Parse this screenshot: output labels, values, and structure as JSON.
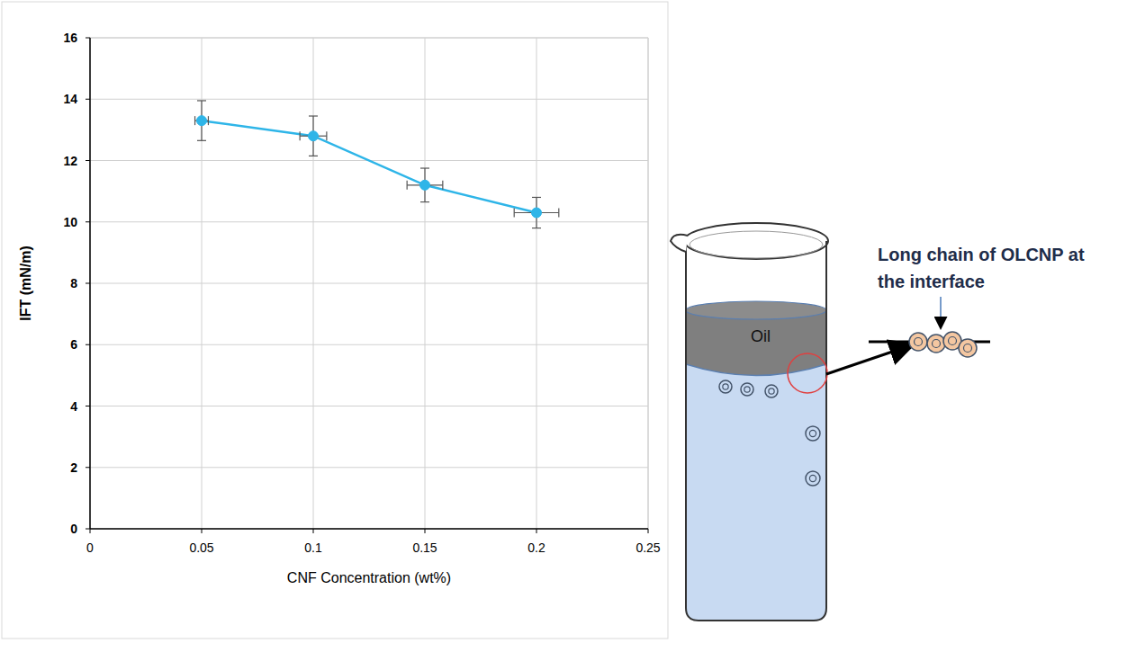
{
  "chart_data": {
    "type": "line",
    "x_label": "CNF Concentration (wt%)",
    "y_label": "IFT (mN/m)",
    "x": [
      0.05,
      0.1,
      0.15,
      0.2
    ],
    "series": [
      {
        "color": "#2eb5e8",
        "marker": "circle",
        "line_style": "solid",
        "values": [
          13.3,
          12.8,
          11.2,
          10.3
        ],
        "errors": [
          0.65,
          0.65,
          0.55,
          0.5
        ],
        "x_errors": [
          0.003,
          0.006,
          0.008,
          0.01
        ]
      }
    ],
    "xlim": [
      0,
      0.25
    ],
    "xticks": [
      0,
      0.05,
      0.1,
      0.15,
      0.2,
      0.25
    ],
    "ylim": [
      0,
      16
    ],
    "yticks": [
      0,
      2,
      4,
      6,
      8,
      10,
      12,
      14,
      16
    ],
    "grid": true,
    "annotations": [
      "Oil",
      "Long chain of OLCNP at the interface"
    ]
  }
}
